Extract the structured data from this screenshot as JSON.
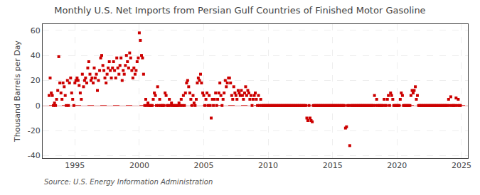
{
  "chart_data": {
    "type": "scatter",
    "title": "Monthly U.S. Net Imports from Persian Gulf Countries of Finished Motor Gasoline",
    "ylabel": "Thousand Barrels per Day",
    "source": "Source: U.S. Energy Information Administration",
    "color": "#cc0000",
    "marker": "square",
    "grid": true,
    "reference_line": {
      "value": 0,
      "color": "#cc0000"
    },
    "xlim": [
      1992.5,
      2025.5
    ],
    "ylim": [
      -42,
      65
    ],
    "xticks": [
      1995,
      2000,
      2005,
      2010,
      2015,
      2020,
      2025
    ],
    "yticks": [
      -40,
      -20,
      0,
      20,
      40,
      60
    ],
    "x": [
      1993.0,
      1993.08,
      1993.17,
      1993.25,
      1993.33,
      1993.42,
      1993.5,
      1993.58,
      1993.67,
      1993.75,
      1993.83,
      1993.92,
      1994.0,
      1994.08,
      1994.17,
      1994.25,
      1994.33,
      1994.42,
      1994.5,
      1994.58,
      1994.67,
      1994.75,
      1994.83,
      1994.92,
      1995.0,
      1995.08,
      1995.17,
      1995.25,
      1995.33,
      1995.42,
      1995.5,
      1995.58,
      1995.67,
      1995.75,
      1995.83,
      1995.92,
      1996.0,
      1996.08,
      1996.17,
      1996.25,
      1996.33,
      1996.42,
      1996.5,
      1996.58,
      1996.67,
      1996.75,
      1996.83,
      1996.92,
      1997.0,
      1997.08,
      1997.17,
      1997.25,
      1997.33,
      1997.42,
      1997.5,
      1997.58,
      1997.67,
      1997.75,
      1997.83,
      1997.92,
      1998.0,
      1998.08,
      1998.17,
      1998.25,
      1998.33,
      1998.42,
      1998.5,
      1998.58,
      1998.67,
      1998.75,
      1998.83,
      1998.92,
      1999.0,
      1999.08,
      1999.17,
      1999.25,
      1999.33,
      1999.42,
      1999.5,
      1999.58,
      1999.67,
      1999.75,
      1999.83,
      1999.92,
      2000.0,
      2000.08,
      2000.17,
      2000.25,
      2000.33,
      2000.42,
      2000.5,
      2000.58,
      2000.67,
      2000.75,
      2000.83,
      2000.92,
      2001.0,
      2001.08,
      2001.17,
      2001.25,
      2001.33,
      2001.42,
      2001.5,
      2001.58,
      2001.67,
      2001.75,
      2001.83,
      2001.92,
      2002.0,
      2002.08,
      2002.17,
      2002.25,
      2002.33,
      2002.42,
      2002.5,
      2002.58,
      2002.67,
      2002.75,
      2002.83,
      2002.92,
      2003.0,
      2003.08,
      2003.17,
      2003.25,
      2003.33,
      2003.42,
      2003.5,
      2003.58,
      2003.67,
      2003.75,
      2003.83,
      2003.92,
      2004.0,
      2004.08,
      2004.17,
      2004.25,
      2004.33,
      2004.42,
      2004.5,
      2004.58,
      2004.67,
      2004.75,
      2004.83,
      2004.92,
      2005.0,
      2005.08,
      2005.17,
      2005.25,
      2005.33,
      2005.42,
      2005.5,
      2005.58,
      2005.67,
      2005.75,
      2005.83,
      2005.92,
      2006.0,
      2006.08,
      2006.17,
      2006.25,
      2006.33,
      2006.42,
      2006.5,
      2006.58,
      2006.67,
      2006.75,
      2006.83,
      2006.92,
      2007.0,
      2007.08,
      2007.17,
      2007.25,
      2007.33,
      2007.42,
      2007.5,
      2007.58,
      2007.67,
      2007.75,
      2007.83,
      2007.92,
      2008.0,
      2008.08,
      2008.17,
      2008.25,
      2008.33,
      2008.42,
      2008.5,
      2008.58,
      2008.67,
      2008.75,
      2008.83,
      2008.92,
      2009.0,
      2009.08,
      2009.17,
      2009.25,
      2009.33,
      2009.42,
      2009.5,
      2009.58,
      2009.67,
      2009.75,
      2009.83,
      2009.92,
      2010.0,
      2010.08,
      2010.17,
      2010.25,
      2010.33,
      2010.42,
      2010.5,
      2010.58,
      2010.67,
      2010.75,
      2010.83,
      2010.92,
      2011.0,
      2011.08,
      2011.17,
      2011.25,
      2011.33,
      2011.42,
      2011.5,
      2011.58,
      2011.67,
      2011.75,
      2011.83,
      2011.92,
      2012.0,
      2012.08,
      2012.17,
      2012.25,
      2012.33,
      2012.42,
      2012.5,
      2012.58,
      2012.67,
      2012.75,
      2012.83,
      2012.92,
      2013.0,
      2013.08,
      2013.17,
      2013.25,
      2013.33,
      2013.42,
      2013.5,
      2013.58,
      2013.67,
      2013.75,
      2013.83,
      2013.92,
      2014.0,
      2014.08,
      2014.17,
      2014.25,
      2014.33,
      2014.42,
      2014.5,
      2014.58,
      2014.67,
      2014.75,
      2014.83,
      2014.92,
      2015.0,
      2015.08,
      2015.17,
      2015.25,
      2015.33,
      2015.42,
      2015.5,
      2015.58,
      2015.67,
      2015.75,
      2015.83,
      2015.92,
      2016.0,
      2016.08,
      2016.17,
      2016.25,
      2016.33,
      2016.42,
      2016.5,
      2016.58,
      2016.67,
      2016.75,
      2016.83,
      2016.92,
      2017.0,
      2017.08,
      2017.17,
      2017.25,
      2017.33,
      2017.42,
      2017.5,
      2017.58,
      2017.67,
      2017.75,
      2017.83,
      2017.92,
      2018.0,
      2018.08,
      2018.17,
      2018.25,
      2018.33,
      2018.42,
      2018.5,
      2018.58,
      2018.67,
      2018.75,
      2018.83,
      2018.92,
      2019.0,
      2019.08,
      2019.17,
      2019.25,
      2019.33,
      2019.42,
      2019.5,
      2019.58,
      2019.67,
      2019.75,
      2019.83,
      2019.92,
      2020.0,
      2020.08,
      2020.17,
      2020.25,
      2020.33,
      2020.42,
      2020.5,
      2020.58,
      2020.67,
      2020.75,
      2020.83,
      2020.92,
      2021.0,
      2021.08,
      2021.17,
      2021.25,
      2021.33,
      2021.42,
      2021.5,
      2021.58,
      2021.67,
      2021.75,
      2021.83,
      2021.92,
      2022.0,
      2022.08,
      2022.17,
      2022.25,
      2022.33,
      2022.42,
      2022.5,
      2022.58,
      2022.67,
      2022.75,
      2022.83,
      2022.92,
      2023.0,
      2023.08,
      2023.17,
      2023.25,
      2023.33,
      2023.42,
      2023.5,
      2023.58,
      2023.67,
      2023.75,
      2023.83,
      2023.92,
      2024.0,
      2024.08,
      2024.17,
      2024.25,
      2024.33,
      2024.42,
      2024.5,
      2024.58,
      2024.67,
      2024.75,
      2024.83,
      2024.92
    ],
    "values": [
      8,
      22,
      10,
      8,
      0,
      2,
      0,
      5,
      12,
      39,
      18,
      10,
      5,
      18,
      15,
      8,
      0,
      20,
      0,
      18,
      22,
      10,
      5,
      0,
      18,
      20,
      22,
      20,
      16,
      10,
      5,
      25,
      15,
      20,
      22,
      18,
      30,
      35,
      25,
      20,
      22,
      18,
      30,
      22,
      25,
      12,
      20,
      28,
      38,
      40,
      32,
      28,
      22,
      18,
      25,
      30,
      35,
      28,
      22,
      30,
      35,
      28,
      22,
      38,
      30,
      25,
      32,
      38,
      20,
      28,
      25,
      32,
      40,
      35,
      30,
      42,
      38,
      28,
      22,
      30,
      25,
      28,
      35,
      38,
      58,
      52,
      40,
      38,
      25,
      0,
      5,
      0,
      2,
      0,
      0,
      0,
      0,
      5,
      10,
      8,
      0,
      15,
      0,
      5,
      0,
      0,
      0,
      0,
      10,
      8,
      0,
      0,
      5,
      0,
      2,
      0,
      0,
      0,
      0,
      0,
      0,
      2,
      0,
      5,
      0,
      8,
      0,
      10,
      18,
      20,
      15,
      10,
      5,
      0,
      8,
      2,
      0,
      5,
      18,
      22,
      20,
      25,
      18,
      10,
      8,
      0,
      5,
      10,
      0,
      8,
      0,
      -10,
      5,
      0,
      5,
      10,
      0,
      5,
      10,
      18,
      8,
      0,
      5,
      10,
      20,
      15,
      18,
      22,
      22,
      18,
      8,
      5,
      15,
      10,
      8,
      5,
      12,
      10,
      8,
      12,
      8,
      5,
      10,
      15,
      8,
      12,
      10,
      5,
      8,
      0,
      5,
      8,
      10,
      5,
      0,
      8,
      0,
      5,
      0,
      0,
      0,
      0,
      0,
      0,
      0,
      0,
      0,
      0,
      0,
      0,
      0,
      0,
      0,
      0,
      0,
      0,
      0,
      0,
      0,
      0,
      0,
      0,
      0,
      0,
      0,
      0,
      0,
      0,
      0,
      0,
      0,
      0,
      0,
      0,
      0,
      0,
      0,
      0,
      0,
      0,
      -10,
      -12,
      0,
      -10,
      -12,
      -13,
      0,
      0,
      0,
      0,
      0,
      0,
      0,
      0,
      0,
      0,
      0,
      0,
      0,
      0,
      0,
      0,
      0,
      0,
      0,
      0,
      0,
      0,
      0,
      0,
      0,
      0,
      0,
      0,
      0,
      0,
      -18,
      -17,
      0,
      0,
      -32,
      0,
      0,
      0,
      0,
      0,
      0,
      0,
      0,
      0,
      0,
      0,
      0,
      0,
      0,
      0,
      0,
      0,
      0,
      0,
      0,
      0,
      0,
      8,
      0,
      5,
      0,
      0,
      0,
      0,
      0,
      0,
      5,
      0,
      0,
      5,
      8,
      0,
      10,
      8,
      5,
      0,
      0,
      0,
      0,
      0,
      0,
      5,
      10,
      8,
      0,
      0,
      0,
      0,
      0,
      0,
      0,
      8,
      12,
      10,
      12,
      15,
      5,
      8,
      0,
      0,
      0,
      0,
      0,
      0,
      0,
      0,
      0,
      0,
      0,
      0,
      0,
      0,
      0,
      0,
      0,
      0,
      0,
      0,
      0,
      0,
      0,
      0,
      0,
      0,
      0,
      0,
      5,
      0,
      7,
      0,
      0,
      0,
      0,
      6,
      0,
      5,
      0,
      0
    ]
  }
}
